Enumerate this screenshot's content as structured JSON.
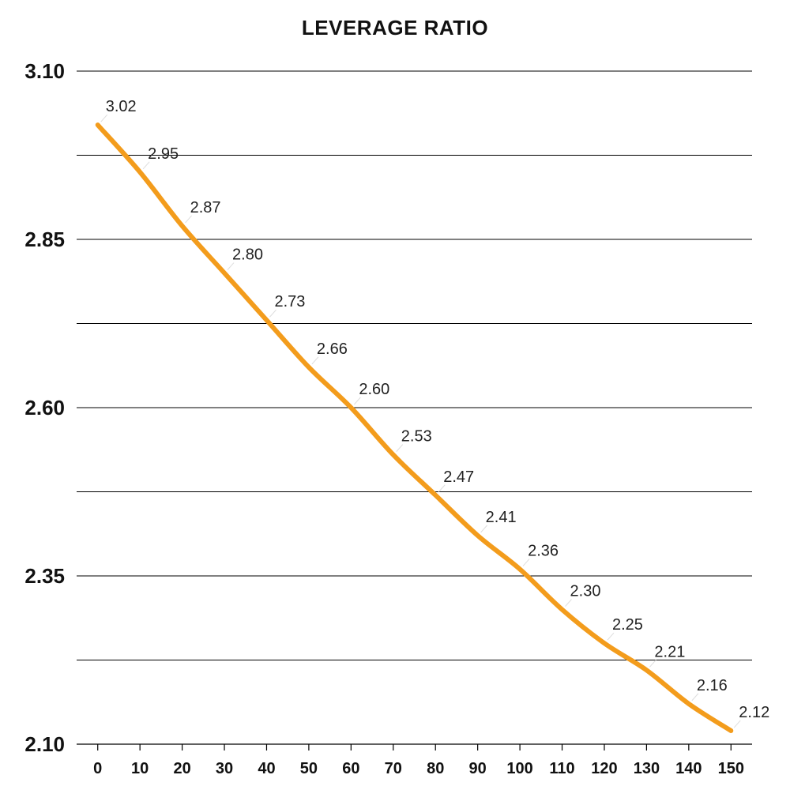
{
  "chart_data": {
    "type": "line",
    "title": "LEVERAGE RATIO",
    "xlabel": "",
    "ylabel": "",
    "x": [
      0,
      10,
      20,
      30,
      40,
      50,
      60,
      70,
      80,
      90,
      100,
      110,
      120,
      130,
      140,
      150
    ],
    "x_tick_labels": [
      "0",
      "10",
      "20",
      "30",
      "40",
      "50",
      "60",
      "70",
      "80",
      "90",
      "100",
      "110",
      "120",
      "130",
      "140",
      "150"
    ],
    "series": [
      {
        "values": [
          3.02,
          2.95,
          2.87,
          2.8,
          2.73,
          2.66,
          2.6,
          2.53,
          2.47,
          2.41,
          2.36,
          2.3,
          2.25,
          2.21,
          2.16,
          2.12
        ],
        "labels": [
          "3.02",
          "2.95",
          "2.87",
          "2.80",
          "2.73",
          "2.66",
          "2.60",
          "2.53",
          "2.47",
          "2.41",
          "2.36",
          "2.30",
          "2.25",
          "2.21",
          "2.16",
          "2.12"
        ],
        "color": "#F39C1C"
      }
    ],
    "y_tick_values": [
      2.1,
      2.35,
      2.6,
      2.85,
      3.1
    ],
    "y_tick_labels": [
      "2.10",
      "2.35",
      "2.60",
      "2.85",
      "3.10"
    ],
    "ylim": [
      2.1,
      3.1
    ],
    "xlim": [
      -5,
      155
    ],
    "grid": "horizontal",
    "grid_step": 0.125,
    "colors": {
      "line": "#F39C1C",
      "grid": "#000000",
      "text": "#111111"
    }
  }
}
